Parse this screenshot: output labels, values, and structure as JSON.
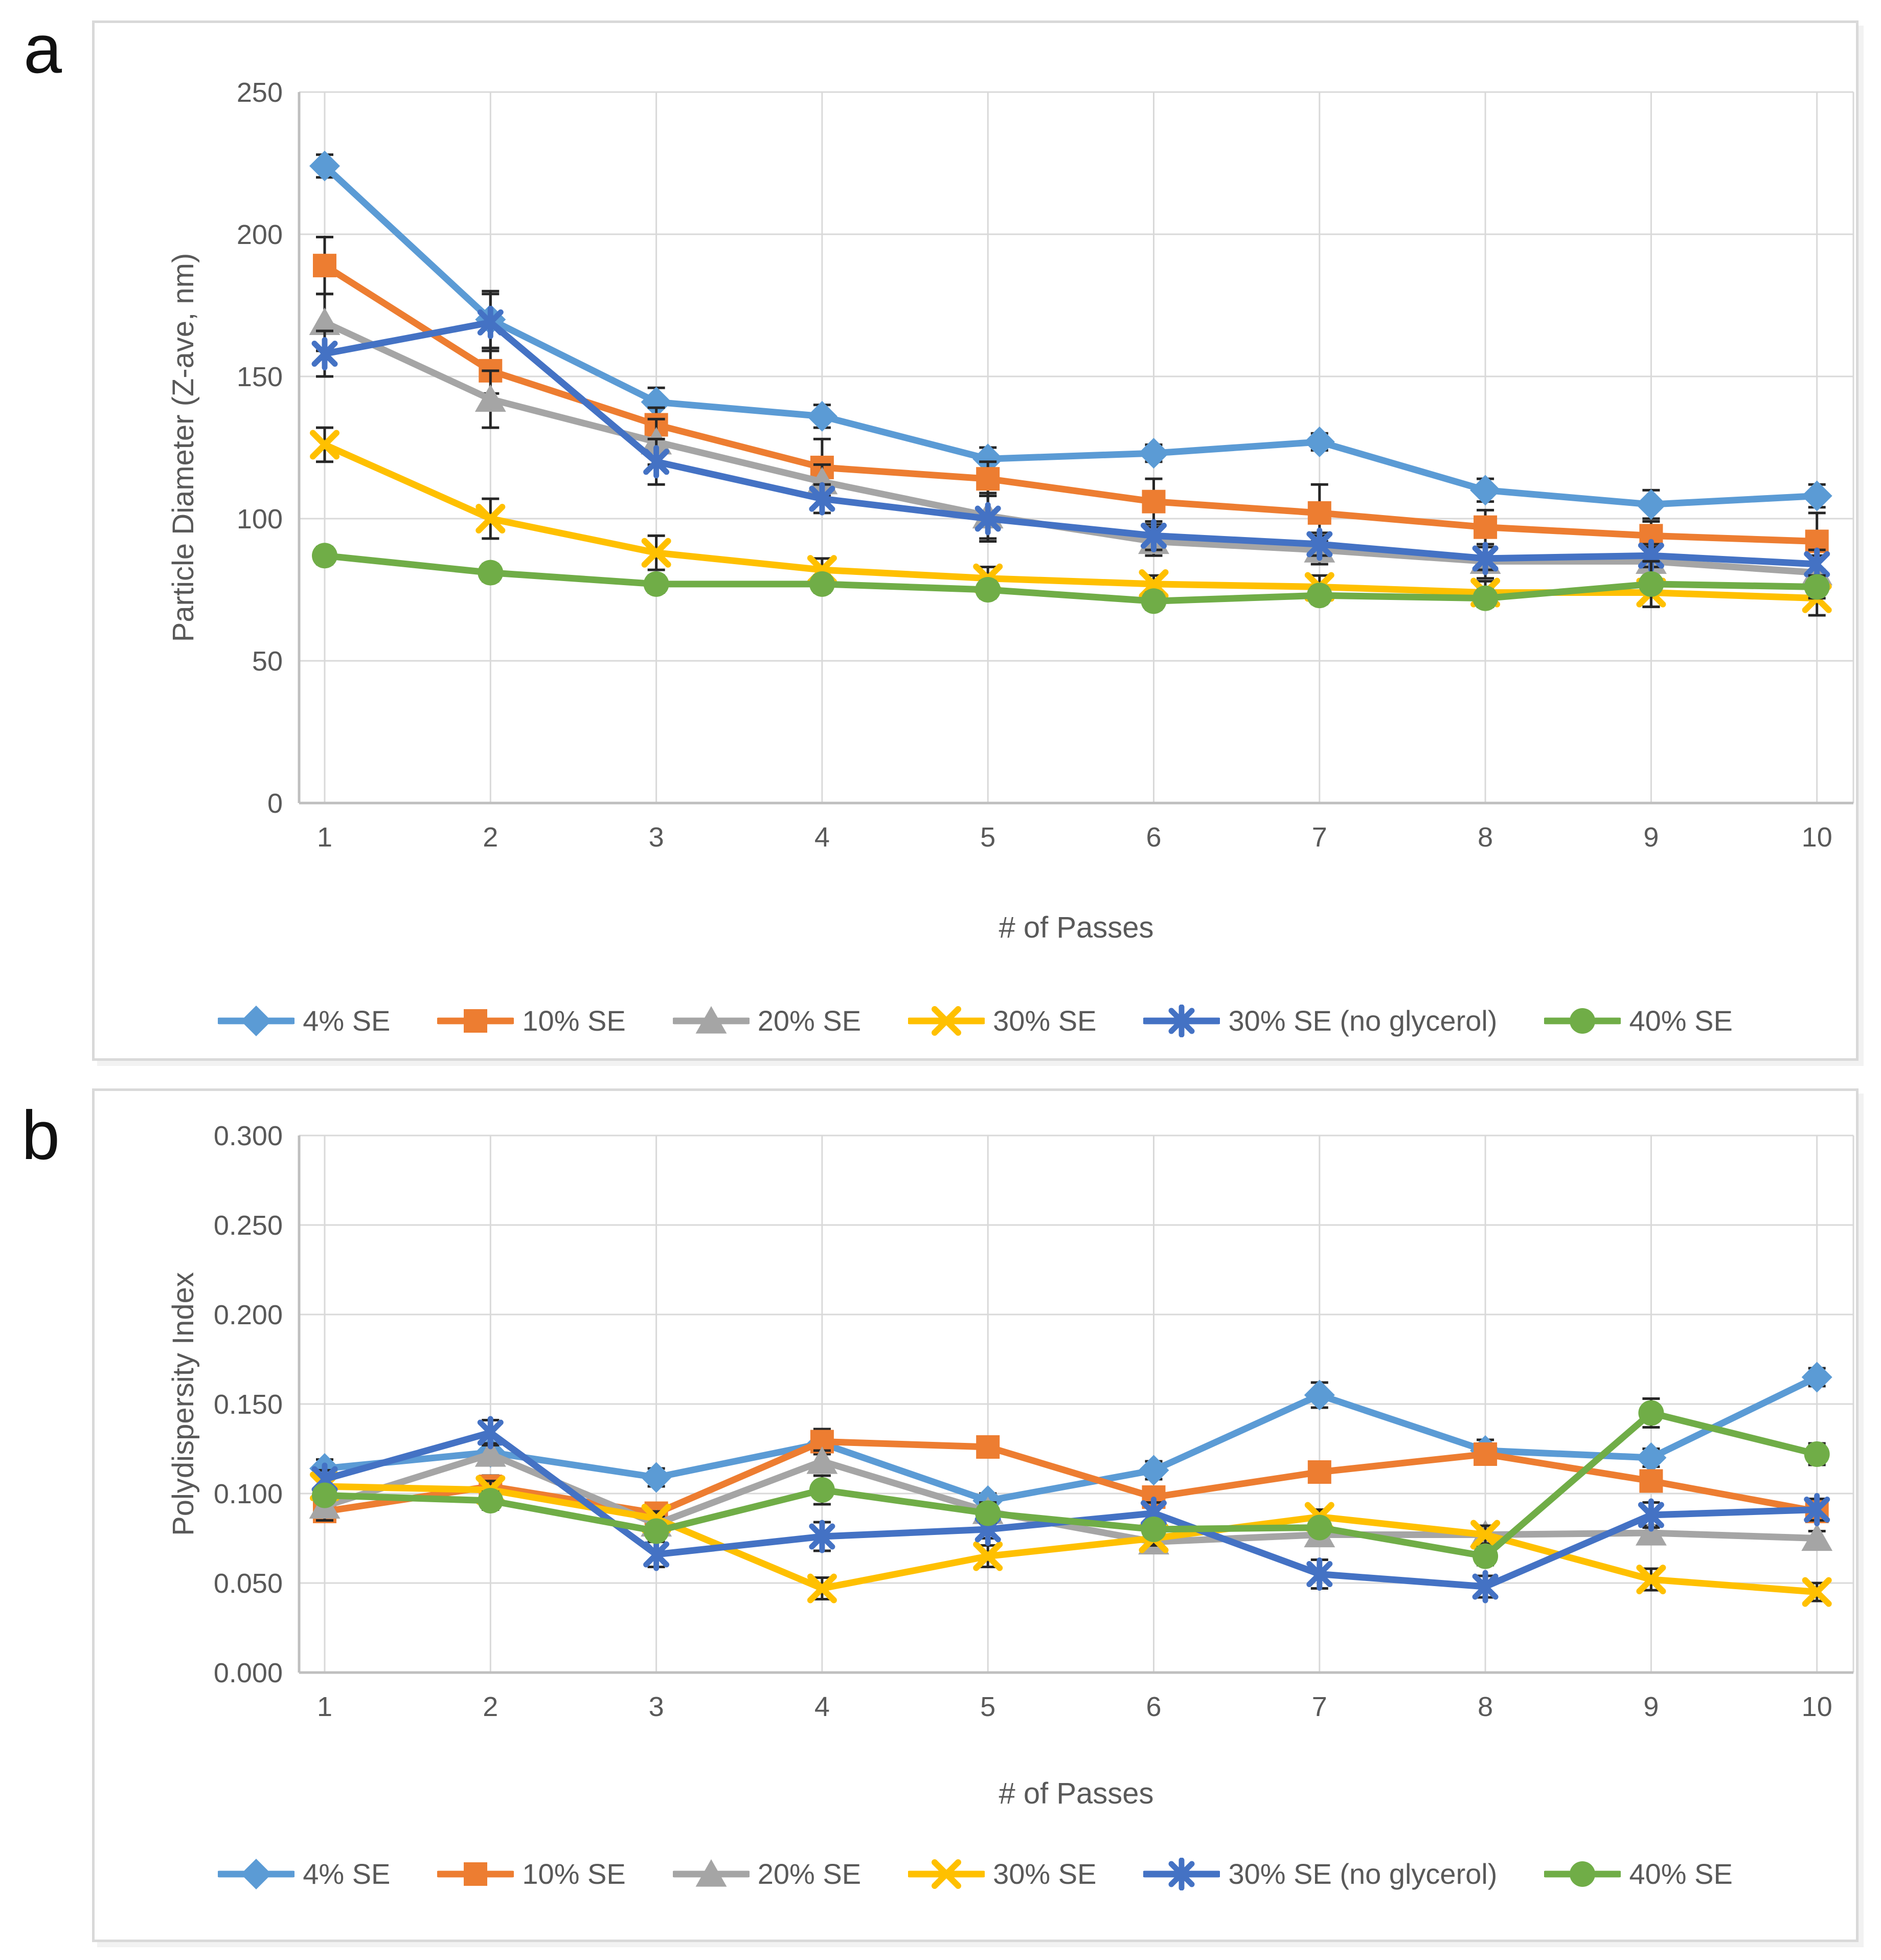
{
  "figure": {
    "panels": [
      {
        "label": "a"
      },
      {
        "label": "b"
      }
    ]
  },
  "chart_data": [
    {
      "type": "line",
      "panel": "a",
      "title": "",
      "xlabel": "# of Passes",
      "ylabel": "Particle Diameter (Z-ave, nm)",
      "x": [
        1,
        2,
        3,
        4,
        5,
        6,
        7,
        8,
        9,
        10
      ],
      "xtick_labels": [
        "1",
        "2",
        "3",
        "4",
        "5",
        "6",
        "7",
        "8",
        "9",
        "10"
      ],
      "ylim": [
        0,
        250
      ],
      "ytick_step": 50,
      "ytick_labels": [
        "0",
        "50",
        "100",
        "150",
        "200",
        "250"
      ],
      "grid": true,
      "legend_position": "bottom",
      "error_bars": true,
      "series": [
        {
          "name": "4% SE",
          "color": "#5B9BD5",
          "marker": "diamond",
          "values": [
            224,
            170,
            141,
            136,
            121,
            123,
            127,
            110,
            105,
            108
          ],
          "err": [
            4,
            10,
            5,
            4,
            4,
            3,
            3,
            4,
            5,
            4
          ]
        },
        {
          "name": "10% SE",
          "color": "#ED7D31",
          "marker": "square",
          "values": [
            189,
            152,
            133,
            118,
            114,
            106,
            102,
            97,
            94,
            92
          ],
          "err": [
            10,
            8,
            6,
            10,
            6,
            8,
            10,
            6,
            5,
            10
          ]
        },
        {
          "name": "20% SE",
          "color": "#A5A5A5",
          "marker": "triangle",
          "values": [
            169,
            142,
            127,
            113,
            101,
            92,
            89,
            85,
            85,
            81
          ],
          "err": [
            10,
            10,
            8,
            6,
            8,
            5,
            5,
            6,
            5,
            6
          ]
        },
        {
          "name": "30% SE",
          "color": "#FFC000",
          "marker": "x",
          "values": [
            126,
            100,
            88,
            82,
            79,
            77,
            76,
            74,
            74,
            72
          ],
          "err": [
            6,
            7,
            6,
            4,
            4,
            3,
            4,
            4,
            5,
            6
          ]
        },
        {
          "name": "30% SE (no glycerol)",
          "color": "#4472C4",
          "marker": "asterisk",
          "values": [
            158,
            169,
            120,
            107,
            100,
            94,
            91,
            86,
            87,
            84
          ],
          "err": [
            8,
            10,
            8,
            5,
            8,
            5,
            4,
            4,
            4,
            5
          ]
        },
        {
          "name": "40% SE",
          "color": "#70AD47",
          "marker": "circle",
          "values": [
            87,
            81,
            77,
            77,
            75,
            71,
            73,
            72,
            77,
            76
          ],
          "err": [
            3,
            3,
            3,
            3,
            3,
            3,
            3,
            3,
            8,
            4
          ]
        }
      ]
    },
    {
      "type": "line",
      "panel": "b",
      "title": "",
      "xlabel": "# of Passes",
      "ylabel": "Polydispersity Index",
      "x": [
        1,
        2,
        3,
        4,
        5,
        6,
        7,
        8,
        9,
        10
      ],
      "xtick_labels": [
        "1",
        "2",
        "3",
        "4",
        "5",
        "6",
        "7",
        "8",
        "9",
        "10"
      ],
      "ylim": [
        0,
        0.3
      ],
      "ytick_step": 0.05,
      "ytick_labels": [
        "0.000",
        "0.050",
        "0.100",
        "0.150",
        "0.200",
        "0.250",
        "0.300"
      ],
      "grid": true,
      "legend_position": "bottom",
      "error_bars": true,
      "series": [
        {
          "name": "4% SE",
          "color": "#5B9BD5",
          "marker": "diamond",
          "values": [
            0.114,
            0.123,
            0.109,
            0.128,
            0.096,
            0.113,
            0.155,
            0.124,
            0.12,
            0.165
          ],
          "err": [
            0.005,
            0.004,
            0.005,
            0.006,
            0.004,
            0.005,
            0.007,
            0.006,
            0.005,
            0.005
          ]
        },
        {
          "name": "10% SE",
          "color": "#ED7D31",
          "marker": "square",
          "values": [
            0.09,
            0.104,
            0.089,
            0.129,
            0.126,
            0.098,
            0.112,
            0.122,
            0.107,
            0.09
          ],
          "err": [
            0.004,
            0.006,
            0.004,
            0.007,
            0.004,
            0.005,
            0.004,
            0.005,
            0.005,
            0.004
          ]
        },
        {
          "name": "20% SE",
          "color": "#A5A5A5",
          "marker": "triangle",
          "values": [
            0.093,
            0.122,
            0.083,
            0.118,
            0.09,
            0.073,
            0.077,
            0.077,
            0.078,
            0.075
          ],
          "err": [
            0.008,
            0.006,
            0.004,
            0.006,
            0.005,
            0.004,
            0.004,
            0.005,
            0.004,
            0.004
          ]
        },
        {
          "name": "30% SE",
          "color": "#FFC000",
          "marker": "x",
          "values": [
            0.104,
            0.102,
            0.086,
            0.047,
            0.065,
            0.075,
            0.087,
            0.077,
            0.052,
            0.045
          ],
          "err": [
            0.004,
            0.005,
            0.004,
            0.006,
            0.006,
            0.004,
            0.004,
            0.005,
            0.006,
            0.005
          ]
        },
        {
          "name": "30% SE (no glycerol)",
          "color": "#4472C4",
          "marker": "asterisk",
          "values": [
            0.108,
            0.134,
            0.066,
            0.076,
            0.08,
            0.089,
            0.055,
            0.048,
            0.088,
            0.091
          ],
          "err": [
            0.005,
            0.007,
            0.007,
            0.008,
            0.005,
            0.006,
            0.008,
            0.006,
            0.007,
            0.006
          ]
        },
        {
          "name": "40% SE",
          "color": "#70AD47",
          "marker": "circle",
          "values": [
            0.099,
            0.096,
            0.079,
            0.102,
            0.089,
            0.08,
            0.081,
            0.065,
            0.145,
            0.122
          ],
          "err": [
            0.004,
            0.005,
            0.004,
            0.008,
            0.005,
            0.004,
            0.004,
            0.005,
            0.008,
            0.006
          ]
        }
      ]
    }
  ],
  "style": {
    "gridline_color": "#d9d9d9",
    "axis_line_color": "#bfbfbf",
    "tick_text_color": "#595959",
    "error_bar_color": "#262626",
    "panel_border_color": "#d9d9d9"
  }
}
